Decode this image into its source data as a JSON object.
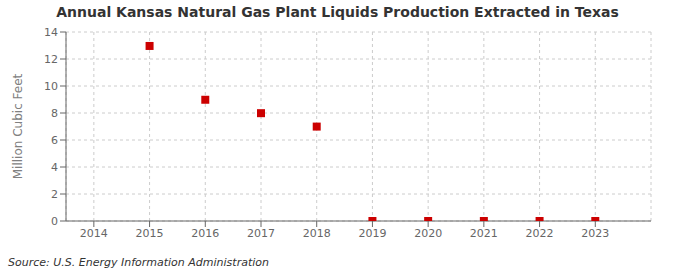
{
  "chart_data": {
    "type": "scatter",
    "title": "Annual Kansas Natural Gas Plant Liquids Production Extracted in Texas",
    "ylabel": "Million Cubic Feet",
    "annotations": [
      "Source: U.S. Energy Information Administration"
    ],
    "x": [
      2015,
      2016,
      2017,
      2018,
      2019,
      2020,
      2021,
      2022,
      2023
    ],
    "values": [
      12.966,
      8.981,
      7.987,
      6.993,
      0.0,
      0.0,
      0.0,
      0.0,
      0.0
    ],
    "color": "#cc0000",
    "marker": "square",
    "xlim": [
      2013.5,
      2024.0
    ],
    "ylim": [
      0,
      14
    ],
    "xticks": [
      2014,
      2015,
      2016,
      2017,
      2018,
      2019,
      2020,
      2021,
      2022,
      2023
    ],
    "yticks": [
      0,
      2,
      4,
      6,
      8,
      10,
      12,
      14
    ],
    "grid": true
  }
}
